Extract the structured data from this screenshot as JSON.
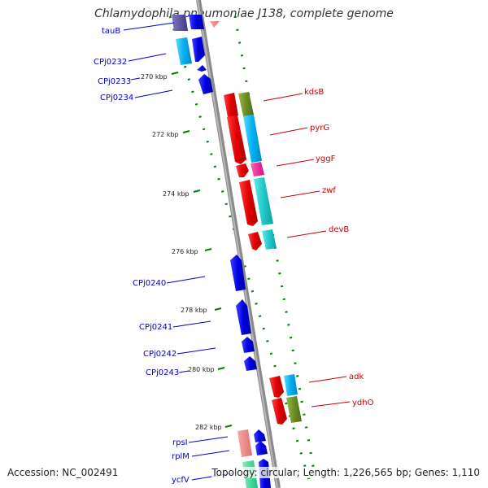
{
  "title": "Chlamydophila pneumoniae J138, complete genome",
  "footer": {
    "accession": "Accession: NC_002491",
    "summary": "Topology: circular; Length: 1,226,565 bp; Genes: 1,110"
  },
  "ticks": [
    "270 kbp",
    "272 kbp",
    "274 kbp",
    "276 kbp",
    "278 kbp",
    "280 kbp",
    "282 kbp"
  ],
  "genes": [
    {
      "label": "tauB",
      "strand": "minus",
      "color": "#0000dd"
    },
    {
      "label": "CPj0232",
      "strand": "minus",
      "color": "#0000dd"
    },
    {
      "label": "CPj0233",
      "strand": "minus",
      "color": "#0000dd"
    },
    {
      "label": "CPj0234",
      "strand": "minus",
      "color": "#0000dd"
    },
    {
      "label": "CPj0240",
      "strand": "minus",
      "color": "#0000dd"
    },
    {
      "label": "CPj0241",
      "strand": "minus",
      "color": "#0000dd"
    },
    {
      "label": "CPj0242",
      "strand": "minus",
      "color": "#0000dd"
    },
    {
      "label": "CPj0243",
      "strand": "minus",
      "color": "#0000dd"
    },
    {
      "label": "rpsI",
      "strand": "minus",
      "color": "#0000dd"
    },
    {
      "label": "rplM",
      "strand": "minus",
      "color": "#0000dd"
    },
    {
      "label": "ycfV",
      "strand": "minus",
      "color": "#0000dd"
    },
    {
      "label": "kdsB",
      "strand": "plus",
      "color": "#dd0000"
    },
    {
      "label": "pyrG",
      "strand": "plus",
      "color": "#dd0000"
    },
    {
      "label": "yggF",
      "strand": "plus",
      "color": "#dd0000"
    },
    {
      "label": "zwf",
      "strand": "plus",
      "color": "#dd0000"
    },
    {
      "label": "devB",
      "strand": "plus",
      "color": "#dd0000"
    },
    {
      "label": "adk",
      "strand": "plus",
      "color": "#dd0000"
    },
    {
      "label": "ydhO",
      "strand": "plus",
      "color": "#dd0000"
    }
  ],
  "colors": {
    "backbone": "#8a8a8a",
    "tick_dots": "#008000",
    "plus_gene": "#e00000",
    "minus_gene": "#0000e0",
    "cog_cyan": "#00b0f0",
    "cog_teal": "#20c8c8",
    "cog_olive": "#6b8e23",
    "cog_magenta": "#e0208f",
    "cog_pink": "#f08080",
    "cog_purple": "#5a4fa0"
  }
}
